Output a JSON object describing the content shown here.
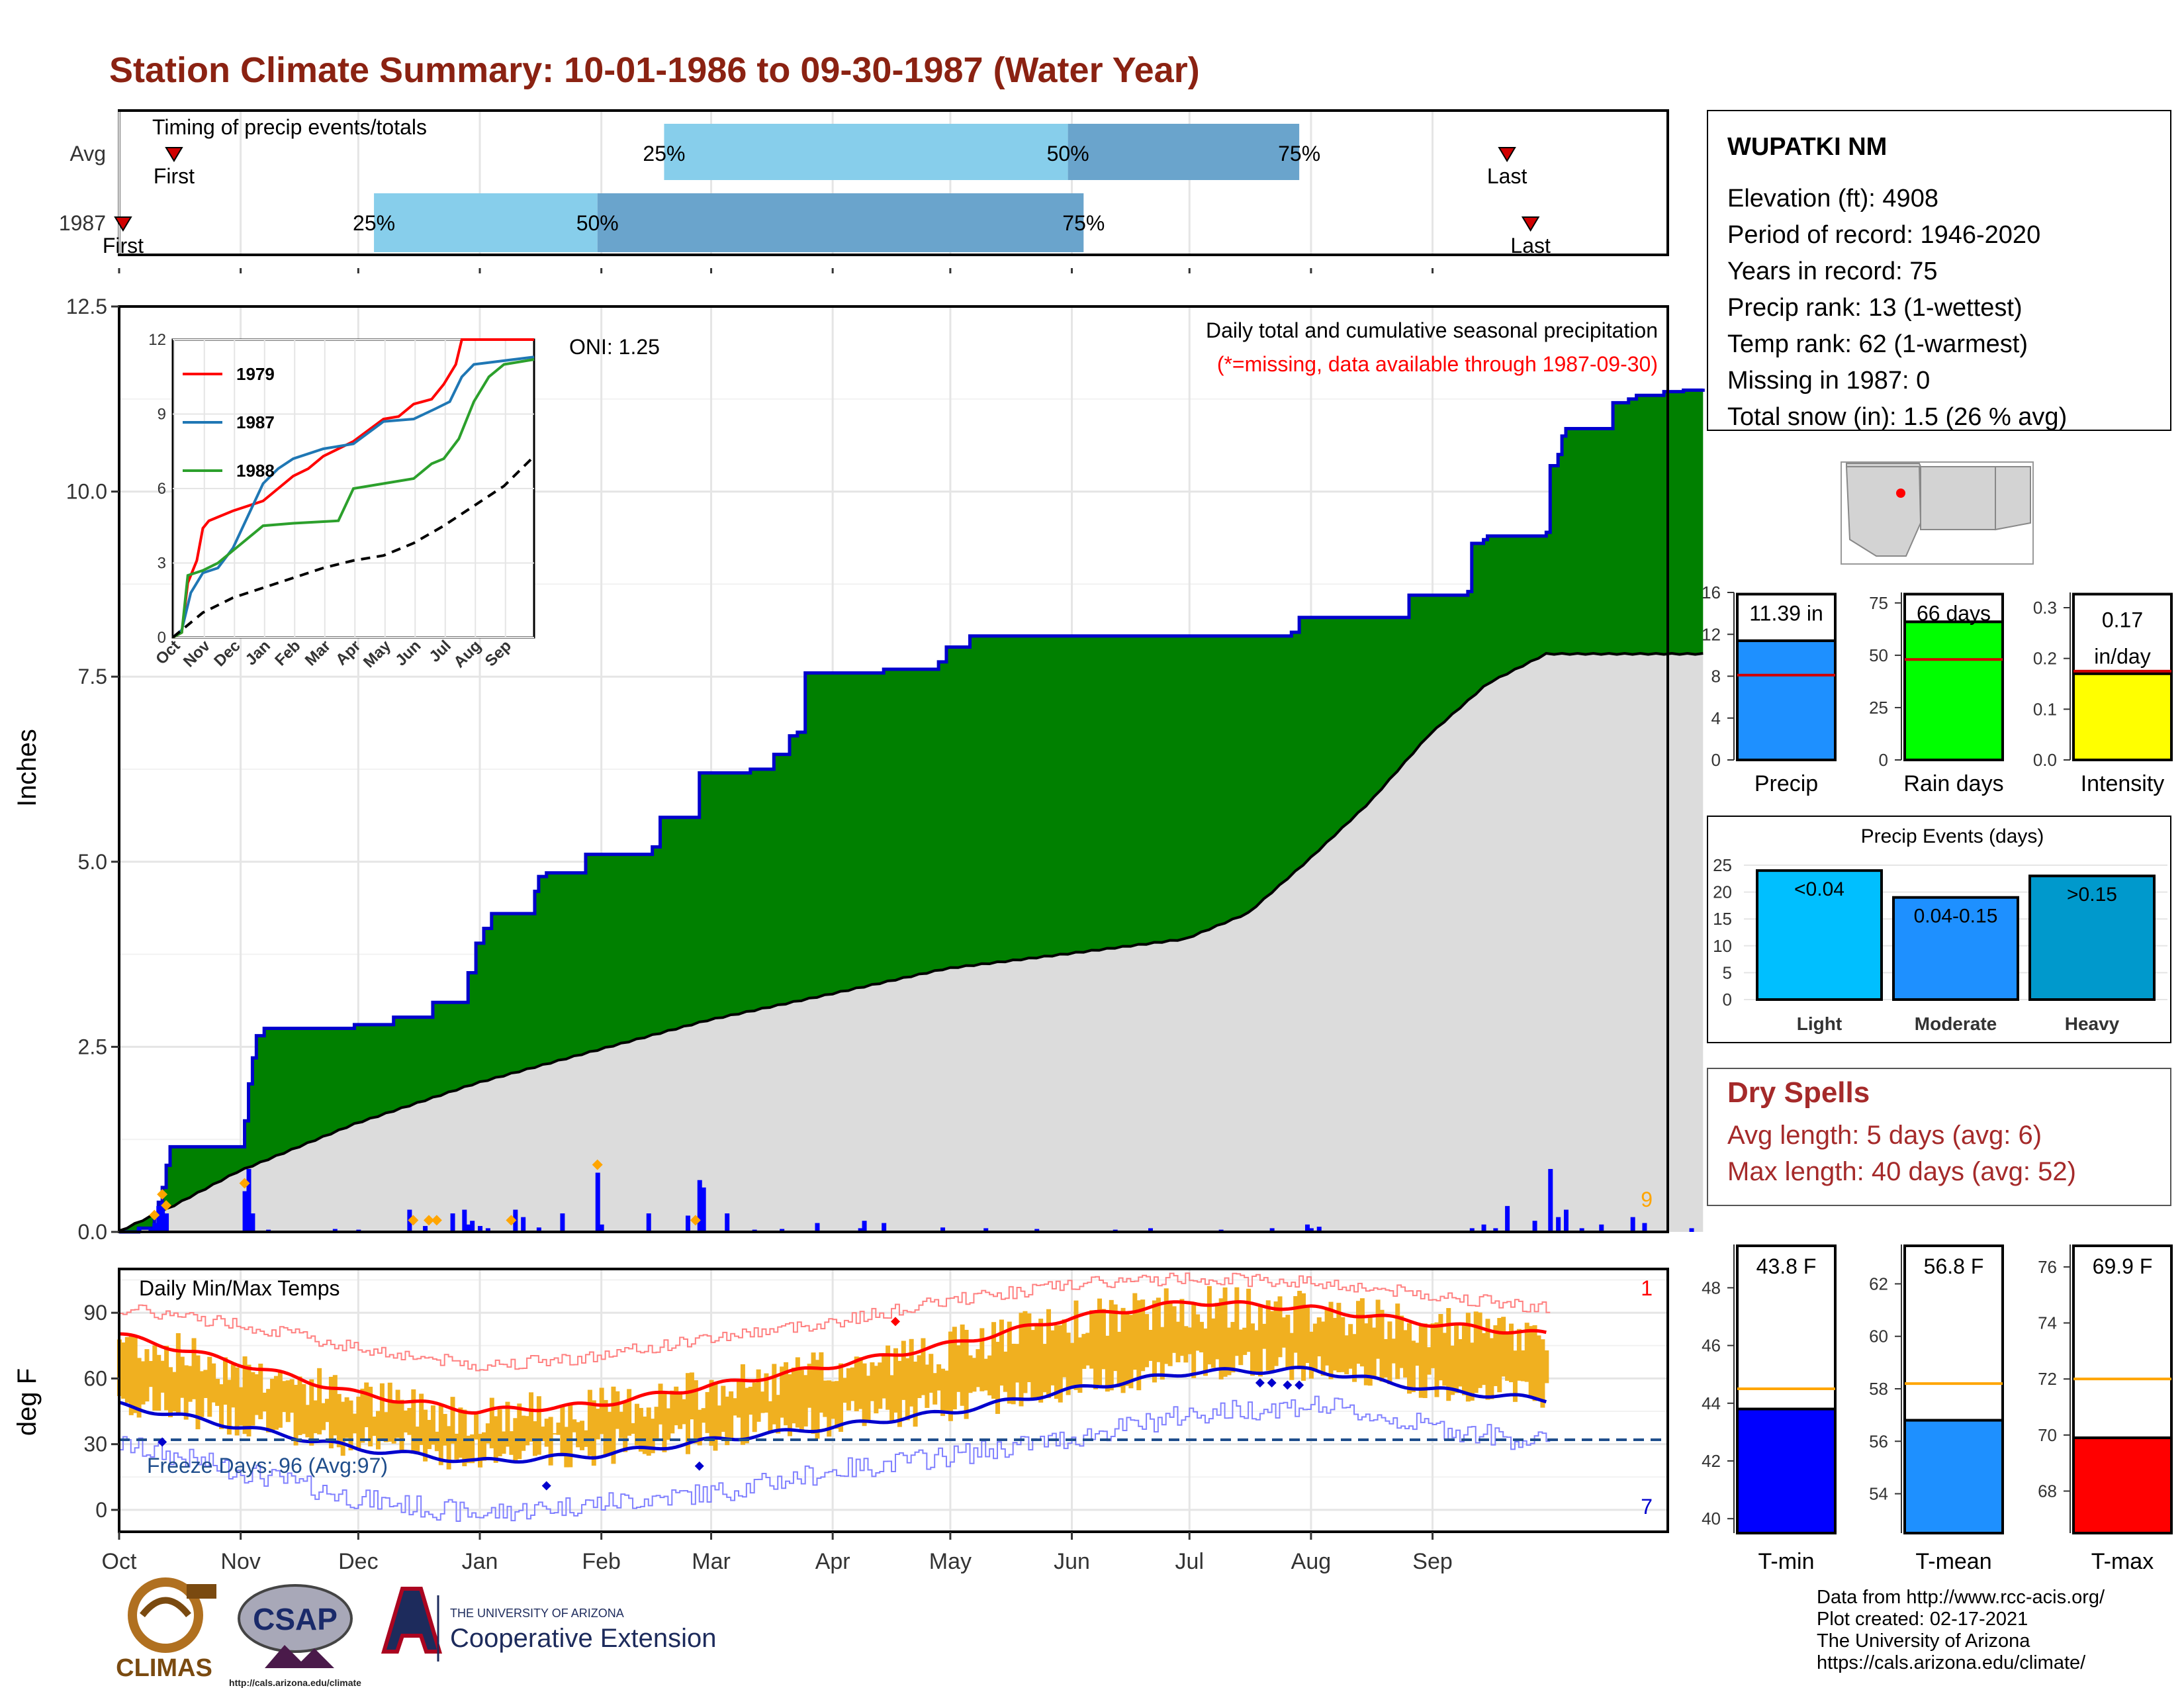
{
  "title": "Station Climate Summary: 10-01-1986 to 09-30-1987 (Water Year)",
  "colors": {
    "title": "#8b2212",
    "precip_fill": "#008000",
    "precip_line": "#0000cd",
    "avg_fill": "#dcdcdc",
    "daily_bar": "#0000ff",
    "event_marker": "#ffa500",
    "timing_light": "#87ceeb",
    "timing_dark": "#6aa4cc",
    "temp_bar": "#f0b020",
    "tmax_line": "#ff0000",
    "tmin_line": "#0000cd",
    "freeze_line": "#1f4e8c",
    "dry_spell_text": "#a52a2a",
    "precip_box": "#1e90ff",
    "raindays_box": "#00ff00",
    "intensity_box": "#ffff00",
    "light_event": "#00bfff",
    "moderate_event": "#1e90ff",
    "heavy_event": "#0099cc",
    "tmin_box": "#0000ff",
    "tmean_box": "#1e90ff",
    "tmax_box": "#ff0000",
    "avg_ref_line": "#ffa500"
  },
  "timing": {
    "title": "Timing of precip events/totals",
    "rows": [
      {
        "label": "Avg",
        "first_label": "First",
        "last_label": "Last",
        "first_day": 15,
        "last_day": 355,
        "p25_label": "25%",
        "p50_label": "50%",
        "p75_label": "75%",
        "p25_day": 140,
        "p50_day": 243,
        "p75_day": 302
      },
      {
        "label": "1987",
        "first_label": "First",
        "last_label": "Last",
        "first_day": 2,
        "last_day": 361,
        "p25_label": "25%",
        "p50_label": "50%",
        "p75_label": "75%",
        "p25_day": 66,
        "p50_day": 123,
        "p75_day": 247
      }
    ]
  },
  "main_chart": {
    "ylabel": "Inches",
    "yticks": [
      "0.0",
      "2.5",
      "5.0",
      "7.5",
      "10.0",
      "12.5"
    ],
    "ylim": [
      0,
      12.5
    ],
    "annot_title": "Daily total and cumulative seasonal precipitation",
    "annot_missing": "(*=missing, data available through 1987-09-30)",
    "oni": "ONI: 1.25",
    "corner_count": "9"
  },
  "inset": {
    "legend": [
      "1979",
      "1987",
      "1988"
    ],
    "legend_colors": [
      "#ff0000",
      "#1f77b4",
      "#2ca02c"
    ],
    "yticks": [
      "0",
      "3",
      "6",
      "9",
      "12"
    ],
    "months": [
      "Oct",
      "Nov",
      "Dec",
      "Jan",
      "Feb",
      "Mar",
      "Apr",
      "May",
      "Jun",
      "Jul",
      "Aug",
      "Sep"
    ]
  },
  "temp_chart": {
    "ylabel": "deg F",
    "title": "Daily Min/Max Temps",
    "yticks": [
      "0",
      "30",
      "60",
      "90"
    ],
    "freeze_label": "Freeze Days: 96 (Avg:97)",
    "record_high_count": "1",
    "record_low_count": "7"
  },
  "x_months": [
    "Oct",
    "Nov",
    "Dec",
    "Jan",
    "Feb",
    "Mar",
    "Apr",
    "May",
    "Jun",
    "Jul",
    "Aug",
    "Sep"
  ],
  "station": {
    "name": "WUPATKI NM",
    "lines": [
      "Elevation (ft): 4908",
      "Period of record: 1946-2020",
      "Years in record: 75",
      "Precip rank: 13 (1-wettest)",
      "Temp rank: 62 (1-warmest)",
      "Missing in 1987: 0",
      "Total snow (in): 1.5 (26 % avg)"
    ]
  },
  "summary_bars": [
    {
      "label": "Precip",
      "value_label": "11.39 in",
      "yticks": [
        "0",
        "4",
        "8",
        "12",
        "16"
      ],
      "ymax": 16,
      "value": 11.39,
      "avg": 8.1
    },
    {
      "label": "Rain days",
      "value_label": "66 days",
      "yticks": [
        "0",
        "25",
        "50",
        "75"
      ],
      "ymax": 80,
      "value": 66,
      "avg": 48
    },
    {
      "label": "Intensity",
      "value_label": "0.17\nin/day",
      "yticks": [
        "0.0",
        "0.1",
        "0.2",
        "0.3"
      ],
      "ymax": 0.33,
      "value": 0.17,
      "avg": 0.175
    }
  ],
  "precip_events": {
    "title": "Precip Events (days)",
    "yticks": [
      "0",
      "5",
      "10",
      "15",
      "20",
      "25"
    ],
    "bars": [
      {
        "label": "Light",
        "value_label": "<0.04",
        "value": 24
      },
      {
        "label": "Moderate",
        "value_label": "0.04-0.15",
        "value": 19
      },
      {
        "label": "Heavy",
        "value_label": ">0.15",
        "value": 23
      }
    ]
  },
  "dry_spells": {
    "title": "Dry Spells",
    "avg_line": "Avg length: 5 days (avg: 6)",
    "max_line": "Max length: 40 days (avg: 52)"
  },
  "temp_bars": [
    {
      "label": "T-min",
      "value_label": "43.8 F",
      "yticks": [
        "40",
        "42",
        "44",
        "46",
        "48"
      ],
      "ymin": 39.5,
      "ymax": 49.5,
      "value": 43.8,
      "avg": 44.5
    },
    {
      "label": "T-mean",
      "value_label": "56.8 F",
      "yticks": [
        "54",
        "56",
        "58",
        "60",
        "62"
      ],
      "ymin": 52.5,
      "ymax": 63.5,
      "value": 56.8,
      "avg": 58.2
    },
    {
      "label": "T-max",
      "value_label": "69.9 F",
      "yticks": [
        "68",
        "70",
        "72",
        "74",
        "76"
      ],
      "ymin": 66.5,
      "ymax": 76.8,
      "value": 69.9,
      "avg": 72.0
    }
  ],
  "footer": {
    "credits": [
      "Data from http://www.rcc-acis.org/",
      "Plot created: 02-17-2021",
      "The University of Arizona",
      "https://cals.arizona.edu/climate/"
    ],
    "climas": "CLIMAS",
    "csap": "CSAP",
    "csap_url": "http://cals.arizona.edu/climate",
    "ua_small": "THE UNIVERSITY OF ARIZONA",
    "ua_big": "Cooperative Extension"
  },
  "chart_data": [
    {
      "type": "area",
      "title": "Daily total and cumulative seasonal precipitation",
      "ylabel": "Inches",
      "ylim": [
        0,
        12.5
      ],
      "x_unit": "day of water year (1 = Oct 1)",
      "cumulative_1987_steps": [
        [
          1,
          0
        ],
        [
          6,
          0.05
        ],
        [
          10,
          0.2
        ],
        [
          11,
          0.4
        ],
        [
          12,
          0.6
        ],
        [
          13,
          0.9
        ],
        [
          14,
          1.15
        ],
        [
          32,
          1.15
        ],
        [
          33,
          1.5
        ],
        [
          34,
          2.0
        ],
        [
          35,
          2.35
        ],
        [
          36,
          2.65
        ],
        [
          38,
          2.75
        ],
        [
          60,
          2.75
        ],
        [
          61,
          2.8
        ],
        [
          70,
          2.8
        ],
        [
          71,
          2.9
        ],
        [
          80,
          2.9
        ],
        [
          81,
          3.1
        ],
        [
          89,
          3.1
        ],
        [
          90,
          3.5
        ],
        [
          92,
          3.9
        ],
        [
          94,
          4.1
        ],
        [
          96,
          4.3
        ],
        [
          106,
          4.3
        ],
        [
          107,
          4.6
        ],
        [
          108,
          4.8
        ],
        [
          110,
          4.85
        ],
        [
          118,
          4.85
        ],
        [
          120,
          5.1
        ],
        [
          135,
          5.1
        ],
        [
          137,
          5.2
        ],
        [
          139,
          5.6
        ],
        [
          148,
          5.6
        ],
        [
          149,
          6.2
        ],
        [
          162,
          6.25
        ],
        [
          168,
          6.45
        ],
        [
          172,
          6.7
        ],
        [
          174,
          6.75
        ],
        [
          176,
          7.55
        ],
        [
          196,
          7.6
        ],
        [
          210,
          7.7
        ],
        [
          212,
          7.9
        ],
        [
          218,
          8.05
        ],
        [
          300,
          8.1
        ],
        [
          302,
          8.3
        ],
        [
          320,
          8.3
        ],
        [
          330,
          8.6
        ],
        [
          345,
          8.65
        ],
        [
          346,
          9.3
        ],
        [
          349,
          9.35
        ],
        [
          350,
          9.4
        ],
        [
          365,
          9.45
        ],
        [
          366,
          10.35
        ],
        [
          367,
          10.35
        ],
        [
          368,
          10.5
        ],
        [
          369,
          10.75
        ],
        [
          370,
          10.85
        ],
        [
          380,
          10.85
        ],
        [
          382,
          11.2
        ],
        [
          386,
          11.25
        ],
        [
          388,
          11.3
        ],
        [
          395,
          11.35
        ],
        [
          400,
          11.37
        ],
        [
          405,
          11.39
        ]
      ],
      "cumulative_avg_points": [
        [
          1,
          0
        ],
        [
          15,
          0.35
        ],
        [
          31,
          0.8
        ],
        [
          61,
          1.45
        ],
        [
          92,
          2.0
        ],
        [
          123,
          2.45
        ],
        [
          151,
          2.85
        ],
        [
          182,
          3.2
        ],
        [
          212,
          3.55
        ],
        [
          243,
          3.75
        ],
        [
          273,
          3.95
        ],
        [
          289,
          4.3
        ],
        [
          304,
          5.0
        ],
        [
          320,
          5.8
        ],
        [
          335,
          6.7
        ],
        [
          350,
          7.4
        ],
        [
          365,
          7.8
        ]
      ],
      "daily_bars": [
        [
          6,
          0.06
        ],
        [
          9,
          0.05
        ],
        [
          10,
          0.12
        ],
        [
          11,
          0.35
        ],
        [
          12,
          0.4
        ],
        [
          13,
          0.25
        ],
        [
          33,
          0.55
        ],
        [
          34,
          0.85
        ],
        [
          35,
          0.25
        ],
        [
          39,
          0.03
        ],
        [
          56,
          0.04
        ],
        [
          62,
          0.03
        ],
        [
          75,
          0.3
        ],
        [
          79,
          0.08
        ],
        [
          86,
          0.25
        ],
        [
          89,
          0.3
        ],
        [
          90,
          0.1
        ],
        [
          91,
          0.15
        ],
        [
          93,
          0.08
        ],
        [
          95,
          0.05
        ],
        [
          102,
          0.3
        ],
        [
          104,
          0.2
        ],
        [
          108,
          0.06
        ],
        [
          114,
          0.25
        ],
        [
          123,
          0.8
        ],
        [
          124,
          0.1
        ],
        [
          136,
          0.25
        ],
        [
          146,
          0.22
        ],
        [
          149,
          0.7
        ],
        [
          150,
          0.6
        ],
        [
          156,
          0.25
        ],
        [
          163,
          0.03
        ],
        [
          170,
          0.04
        ],
        [
          179,
          0.12
        ],
        [
          190,
          0.05
        ],
        [
          191,
          0.15
        ],
        [
          196,
          0.12
        ],
        [
          211,
          0.06
        ],
        [
          222,
          0.05
        ],
        [
          235,
          0.04
        ],
        [
          255,
          0.03
        ],
        [
          264,
          0.05
        ],
        [
          282,
          0.03
        ],
        [
          295,
          0.05
        ],
        [
          304,
          0.1
        ],
        [
          305,
          0.05
        ],
        [
          307,
          0.07
        ],
        [
          346,
          0.05
        ],
        [
          349,
          0.1
        ],
        [
          352,
          0.05
        ],
        [
          355,
          0.35
        ],
        [
          362,
          0.15
        ],
        [
          366,
          0.85
        ],
        [
          368,
          0.2
        ],
        [
          370,
          0.3
        ],
        [
          374,
          0.05
        ],
        [
          379,
          0.1
        ],
        [
          387,
          0.2
        ],
        [
          390,
          0.12
        ],
        [
          402,
          0.05
        ]
      ],
      "event_markers_days": [
        10,
        12,
        13,
        33,
        76,
        80,
        82,
        101,
        123,
        148
      ]
    },
    {
      "type": "line",
      "title": "Daily Min/Max Temps",
      "ylabel": "deg F",
      "ylim": [
        -10,
        110
      ],
      "freeze_threshold": 32,
      "normal_tmax_monthly": [
        80,
        67,
        53,
        45,
        48,
        57,
        66,
        76,
        88,
        95,
        92,
        85,
        80
      ],
      "normal_tmin_monthly": [
        48,
        38,
        28,
        22,
        25,
        32,
        38,
        45,
        55,
        63,
        64,
        55,
        50
      ],
      "record_tmax_monthly": [
        92,
        85,
        74,
        66,
        70,
        79,
        86,
        96,
        103,
        106,
        104,
        98,
        92
      ],
      "record_tmin_monthly": [
        30,
        18,
        5,
        -2,
        3,
        8,
        18,
        25,
        33,
        44,
        48,
        38,
        30
      ]
    }
  ]
}
